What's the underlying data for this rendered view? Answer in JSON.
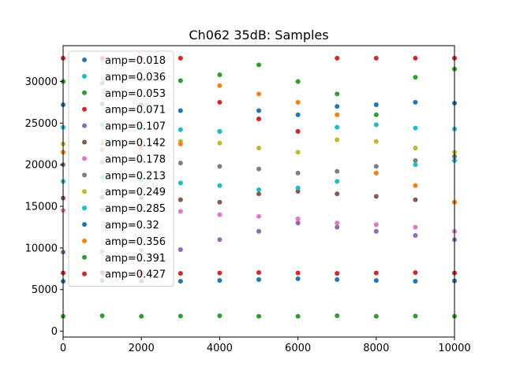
{
  "chart_data": {
    "type": "scatter",
    "title": "Ch062 35dB: Samples",
    "xlabel": "",
    "ylabel": "",
    "xlim": [
      0,
      10000
    ],
    "ylim": [
      -700,
      34300
    ],
    "xticks": [
      "0",
      "2000",
      "4000",
      "6000",
      "8000",
      "10000"
    ],
    "yticks": [
      "0",
      "5000",
      "10000",
      "15000",
      "20000",
      "25000",
      "30000"
    ],
    "grid": false,
    "legend_position": "upper-left",
    "colors": [
      "#1f77b4",
      "#17becf",
      "#2ca02c",
      "#d62728",
      "#9467bd",
      "#8c564b",
      "#e377c2",
      "#7f7f7f",
      "#bcbd22",
      "#17becf",
      "#1f77b4",
      "#ff7f0e",
      "#2ca02c",
      "#d62728"
    ],
    "series": [
      {
        "name": "amp=0.018",
        "x": [
          0,
          1000,
          2000,
          3000,
          4000,
          5000,
          6000,
          7000,
          8000,
          9000,
          10000
        ],
        "y": [
          27200,
          27300,
          27200,
          26500,
          24000,
          26500,
          26000,
          27000,
          27200,
          27500,
          27400
        ]
      },
      {
        "name": "amp=0.036",
        "x": [
          0,
          1000,
          2000,
          3000,
          4000,
          5000,
          6000,
          7000,
          8000,
          9000,
          10000
        ],
        "y": [
          24500,
          24800,
          24600,
          24200,
          24000,
          25500,
          24000,
          24500,
          24800,
          24400,
          24300
        ]
      },
      {
        "name": "amp=0.053",
        "x": [
          0,
          1000,
          2000,
          3000,
          4000,
          5000,
          6000,
          7000,
          8000,
          9000,
          10000
        ],
        "y": [
          30000,
          29800,
          30200,
          30100,
          30800,
          32000,
          30000,
          28500,
          26000,
          30500,
          31500
        ]
      },
      {
        "name": "amp=0.071",
        "x": [
          0,
          1000,
          2000,
          3000,
          4000,
          5000,
          6000,
          7000,
          8000,
          9000,
          10000
        ],
        "y": [
          32800,
          32800,
          32800,
          32800,
          27500,
          25500,
          24000,
          32800,
          32800,
          32800,
          32800
        ]
      },
      {
        "name": "amp=0.107",
        "x": [
          0,
          1000,
          2000,
          3000,
          4000,
          5000,
          6000,
          7000,
          8000,
          9000,
          10000
        ],
        "y": [
          9500,
          9600,
          9700,
          9800,
          11000,
          12000,
          13000,
          12500,
          12000,
          11500,
          11000
        ]
      },
      {
        "name": "amp=0.142",
        "x": [
          0,
          1000,
          2000,
          3000,
          4000,
          5000,
          6000,
          7000,
          8000,
          9000,
          10000
        ],
        "y": [
          16000,
          16100,
          16000,
          15800,
          15500,
          16500,
          16800,
          16500,
          16200,
          15800,
          15500
        ]
      },
      {
        "name": "amp=0.178",
        "x": [
          0,
          1000,
          2000,
          3000,
          4000,
          5000,
          6000,
          7000,
          8000,
          9000,
          10000
        ],
        "y": [
          14500,
          14600,
          14700,
          14400,
          14000,
          13800,
          13500,
          13000,
          12800,
          12500,
          12000
        ]
      },
      {
        "name": "amp=0.213",
        "x": [
          0,
          1000,
          2000,
          3000,
          4000,
          5000,
          6000,
          7000,
          8000,
          9000,
          10000
        ],
        "y": [
          20000,
          20300,
          20500,
          20200,
          19800,
          19500,
          19000,
          19200,
          19800,
          20500,
          21000
        ]
      },
      {
        "name": "amp=0.249",
        "x": [
          0,
          1000,
          2000,
          3000,
          4000,
          5000,
          6000,
          7000,
          8000,
          9000,
          10000
        ],
        "y": [
          22500,
          22600,
          22700,
          22800,
          22600,
          22000,
          21500,
          23000,
          22800,
          22000,
          21500
        ]
      },
      {
        "name": "amp=0.285",
        "x": [
          0,
          1000,
          2000,
          3000,
          4000,
          5000,
          6000,
          7000,
          8000,
          9000,
          10000
        ],
        "y": [
          18000,
          18500,
          18200,
          17800,
          17500,
          17000,
          17200,
          18000,
          19000,
          20000,
          20500
        ]
      },
      {
        "name": "amp=0.32",
        "x": [
          0,
          1000,
          2000,
          3000,
          4000,
          5000,
          6000,
          7000,
          8000,
          9000,
          10000
        ],
        "y": [
          6000,
          6100,
          6050,
          6000,
          6100,
          6200,
          6300,
          6200,
          6100,
          6000,
          6050
        ]
      },
      {
        "name": "amp=0.356",
        "x": [
          0,
          1000,
          2000,
          3000,
          4000,
          5000,
          6000,
          7000,
          8000,
          9000,
          10000
        ],
        "y": [
          21500,
          21800,
          22000,
          22500,
          29500,
          28500,
          27500,
          26000,
          19000,
          17500,
          15500
        ]
      },
      {
        "name": "amp=0.391",
        "x": [
          0,
          1000,
          2000,
          3000,
          4000,
          5000,
          6000,
          7000,
          8000,
          9000,
          10000
        ],
        "y": [
          1800,
          1850,
          1800,
          1820,
          1850,
          1800,
          1800,
          1850,
          1800,
          1820,
          1800
        ]
      },
      {
        "name": "amp=0.427",
        "x": [
          0,
          1000,
          2000,
          3000,
          4000,
          5000,
          6000,
          7000,
          8000,
          9000,
          10000
        ],
        "y": [
          7000,
          7050,
          7000,
          6950,
          7000,
          7050,
          7000,
          6950,
          7000,
          7050,
          7000
        ]
      }
    ]
  }
}
